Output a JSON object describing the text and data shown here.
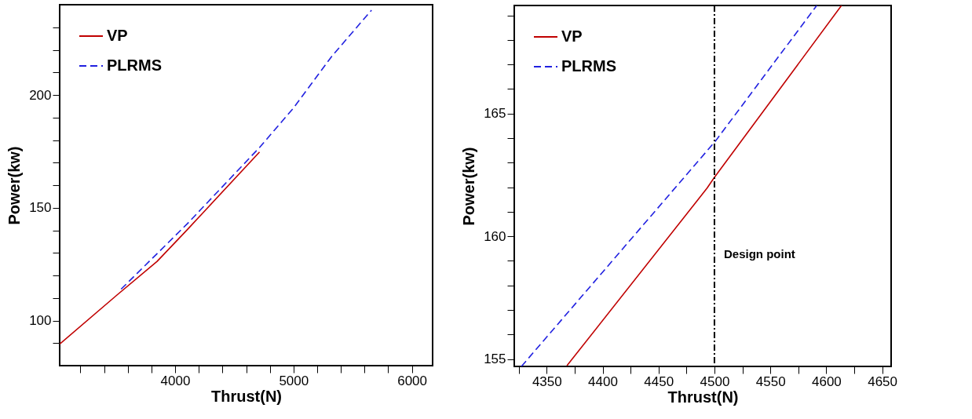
{
  "chart_data": [
    {
      "type": "line",
      "xlabel": "Thrust(N)",
      "ylabel": "Power(kw)",
      "xlim": [
        3025,
        6175
      ],
      "ylim": [
        80,
        240
      ],
      "xticks": [
        {
          "value": 3200,
          "label": null
        },
        {
          "value": 3400,
          "label": null
        },
        {
          "value": 3600,
          "label": null
        },
        {
          "value": 3800,
          "label": null
        },
        4000,
        {
          "value": 4200,
          "label": null
        },
        {
          "value": 4400,
          "label": null
        },
        {
          "value": 4600,
          "label": null
        },
        {
          "value": 4800,
          "label": null
        },
        5000,
        {
          "value": 5200,
          "label": null
        },
        {
          "value": 5400,
          "label": null
        },
        {
          "value": 5600,
          "label": null
        },
        {
          "value": 5800,
          "label": null
        },
        6000
      ],
      "yticks": [
        {
          "value": 90,
          "label": null
        },
        100,
        {
          "value": 110,
          "label": null
        },
        {
          "value": 120,
          "label": null
        },
        {
          "value": 130,
          "label": null
        },
        {
          "value": 140,
          "label": null
        },
        150,
        {
          "value": 160,
          "label": null
        },
        {
          "value": 170,
          "label": null
        },
        {
          "value": 180,
          "label": null
        },
        {
          "value": 190,
          "label": null
        },
        200,
        {
          "value": 210,
          "label": null
        },
        {
          "value": 220,
          "label": null
        },
        {
          "value": 230,
          "label": null
        }
      ],
      "legend": "top left",
      "grid": false,
      "series": [
        {
          "name": "VP",
          "color": "#c00000",
          "line_style": "solid",
          "x": [
            3026,
            3509,
            3848,
            4105,
            4713
          ],
          "values": [
            89.6,
            111.3,
            126.2,
            140.4,
            174.7
          ]
        },
        {
          "name": "PLRMS",
          "color": "#2020e0",
          "line_style": "dashed",
          "x": [
            3544,
            4105,
            4713,
            5000,
            5320,
            5659
          ],
          "values": [
            113.9,
            143.0,
            176.7,
            194.2,
            216.9,
            237.6
          ]
        }
      ]
    },
    {
      "type": "line",
      "xlabel": "Thrust(N)",
      "ylabel": "Power(kw)",
      "xlim": [
        4321,
        4658
      ],
      "ylim": [
        154.7,
        169.4
      ],
      "xticks": [
        {
          "value": 4325,
          "label": null
        },
        4350,
        {
          "value": 4375,
          "label": null
        },
        4400,
        {
          "value": 4425,
          "label": null
        },
        4450,
        {
          "value": 4475,
          "label": null
        },
        4500,
        {
          "value": 4525,
          "label": null
        },
        4550,
        {
          "value": 4575,
          "label": null
        },
        4600,
        {
          "value": 4625,
          "label": null
        },
        4650
      ],
      "yticks": [
        155,
        {
          "value": 156,
          "label": null
        },
        {
          "value": 157,
          "label": null
        },
        {
          "value": 158,
          "label": null
        },
        {
          "value": 159,
          "label": null
        },
        160,
        {
          "value": 161,
          "label": null
        },
        {
          "value": 162,
          "label": null
        },
        {
          "value": 163,
          "label": null
        },
        {
          "value": 164,
          "label": null
        },
        165,
        {
          "value": 166,
          "label": null
        },
        {
          "value": 167,
          "label": null
        },
        {
          "value": 168,
          "label": null
        },
        {
          "value": 169,
          "label": null
        }
      ],
      "legend": "top left",
      "grid": false,
      "ref_lines": [
        {
          "axis": "x",
          "value": 4500,
          "label": "Design point",
          "color": "#000000",
          "line_style": "dashed"
        }
      ],
      "series": [
        {
          "name": "VP",
          "color": "#c00000",
          "line_style": "solid",
          "x": [
            4368.1,
            4493.4,
            4500,
            4613.6
          ],
          "values": [
            154.73,
            161.96,
            162.4,
            169.4
          ]
        },
        {
          "name": "PLRMS",
          "color": "#2020e0",
          "line_style": "dashed",
          "x": [
            4327.4,
            4501.3,
            4591.5
          ],
          "values": [
            154.7,
            163.9,
            169.4
          ]
        }
      ]
    }
  ]
}
